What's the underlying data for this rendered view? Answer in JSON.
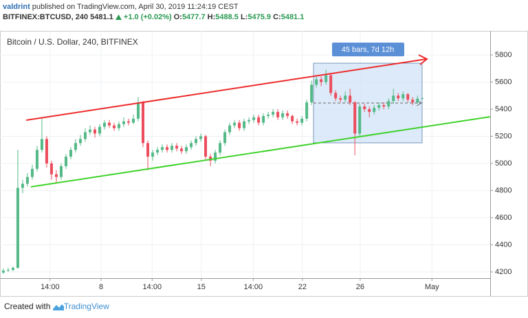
{
  "header": {
    "author": "valdrint",
    "published": "published on TradingView.com, April 30, 2019 11:24:19 CEST",
    "symbol": "BITFINEX:BTCUSD, 240",
    "change": "+1.0 (+0.02%)",
    "o_label": "O:",
    "h_label": "H:",
    "l_label": "L:",
    "c_label": "C:"
  },
  "chart_data": {
    "type": "candlestick",
    "title": "Bitcoin / U.S. Dollar, 240, BITFINEX",
    "annotation": "45 bars, 7d 12h",
    "open": [
      4195,
      4210,
      4215,
      4230,
      4820,
      4850,
      4900,
      4960,
      5100,
      5180,
      5000,
      4920,
      4900,
      4980,
      5050,
      5100,
      5150,
      5180,
      5230,
      5250,
      5220,
      5270,
      5300,
      5280,
      5260,
      5290,
      5310,
      5300,
      5330,
      5450,
      5150,
      5050,
      5080,
      5100,
      5120,
      5100,
      5130,
      5110,
      5090,
      5120,
      5150,
      5180,
      5200,
      5050,
      5020,
      5080,
      5150,
      5230,
      5280,
      5300,
      5260,
      5310,
      5320,
      5340,
      5300,
      5350,
      5360,
      5380,
      5340,
      5370,
      5350,
      5310,
      5300,
      5330,
      5450,
      5580,
      5620,
      5600,
      5650,
      5520,
      5480,
      5470,
      5500,
      5450,
      5220,
      5420,
      5400,
      5380,
      5410,
      5430,
      5420,
      5460,
      5500,
      5480,
      5510,
      5470,
      5450,
      5477.7
    ],
    "high": [
      4225,
      4230,
      4240,
      5100,
      4880,
      4930,
      4990,
      5130,
      5330,
      5200,
      5020,
      4950,
      5000,
      5070,
      5120,
      5180,
      5210,
      5260,
      5280,
      5270,
      5290,
      5320,
      5320,
      5300,
      5310,
      5340,
      5330,
      5360,
      5490,
      5460,
      5170,
      5100,
      5120,
      5140,
      5140,
      5150,
      5150,
      5130,
      5140,
      5170,
      5200,
      5220,
      5210,
      5070,
      5100,
      5170,
      5250,
      5300,
      5320,
      5320,
      5330,
      5340,
      5360,
      5360,
      5370,
      5380,
      5400,
      5400,
      5390,
      5390,
      5360,
      5330,
      5350,
      5470,
      5610,
      5650,
      5640,
      5690,
      5660,
      5540,
      5500,
      5530,
      5550,
      5460,
      5440,
      5440,
      5420,
      5430,
      5450,
      5450,
      5480,
      5550,
      5520,
      5530,
      5520,
      5490,
      5500,
      5488.5
    ],
    "low": [
      4185,
      4200,
      4205,
      4225,
      4780,
      4830,
      4880,
      4940,
      5080,
      4970,
      4880,
      4850,
      4880,
      4960,
      5030,
      5080,
      5130,
      5160,
      5210,
      5190,
      5200,
      5250,
      5260,
      5240,
      5240,
      5270,
      5280,
      5290,
      5310,
      5120,
      4950,
      5020,
      5060,
      5080,
      5080,
      5080,
      5090,
      5070,
      5070,
      5100,
      5130,
      5160,
      5030,
      4980,
      5000,
      5060,
      5130,
      5210,
      5260,
      5240,
      5240,
      5290,
      5300,
      5280,
      5280,
      5330,
      5340,
      5320,
      5320,
      5330,
      5290,
      5280,
      5280,
      5310,
      5430,
      5560,
      5570,
      5580,
      5500,
      5460,
      5450,
      5450,
      5430,
      5060,
      5200,
      5380,
      5340,
      5360,
      5390,
      5400,
      5400,
      5440,
      5460,
      5460,
      5450,
      5430,
      5440,
      5475.9
    ],
    "close": [
      4210,
      4215,
      4230,
      4820,
      4850,
      4900,
      4960,
      5100,
      5180,
      5000,
      4920,
      4900,
      4980,
      5050,
      5100,
      5150,
      5180,
      5230,
      5250,
      5220,
      5270,
      5300,
      5280,
      5260,
      5290,
      5310,
      5300,
      5330,
      5450,
      5150,
      5050,
      5080,
      5100,
      5120,
      5100,
      5130,
      5110,
      5090,
      5120,
      5150,
      5180,
      5200,
      5050,
      5020,
      5080,
      5150,
      5230,
      5280,
      5300,
      5260,
      5310,
      5320,
      5340,
      5300,
      5350,
      5360,
      5380,
      5340,
      5370,
      5350,
      5310,
      5300,
      5330,
      5450,
      5580,
      5620,
      5600,
      5650,
      5520,
      5480,
      5470,
      5500,
      5450,
      5220,
      5420,
      5400,
      5380,
      5410,
      5430,
      5420,
      5460,
      5500,
      5480,
      5510,
      5470,
      5450,
      5477.7,
      5481.1
    ],
    "up_color": "#53b987",
    "down_color": "#eb4d5c",
    "ylim": [
      4154,
      5977
    ],
    "yticks": [
      4200,
      4400,
      4600,
      4800,
      5000,
      5200,
      5400,
      5600,
      5800
    ],
    "xlim": [
      -0.7,
      101.1
    ],
    "xticks": [
      {
        "value": 9.7,
        "label": "14:00"
      },
      {
        "value": 20.3,
        "label": "8"
      },
      {
        "value": 30.9,
        "label": "14:00"
      },
      {
        "value": 41.1,
        "label": "15"
      },
      {
        "value": 51.9,
        "label": "14:00"
      },
      {
        "value": 62.1,
        "label": "22"
      },
      {
        "value": 74.1,
        "label": "26"
      },
      {
        "value": 89,
        "label": "May"
      }
    ],
    "grid": true
  },
  "footer": {
    "created": "Created with",
    "brand": "TradingView"
  }
}
